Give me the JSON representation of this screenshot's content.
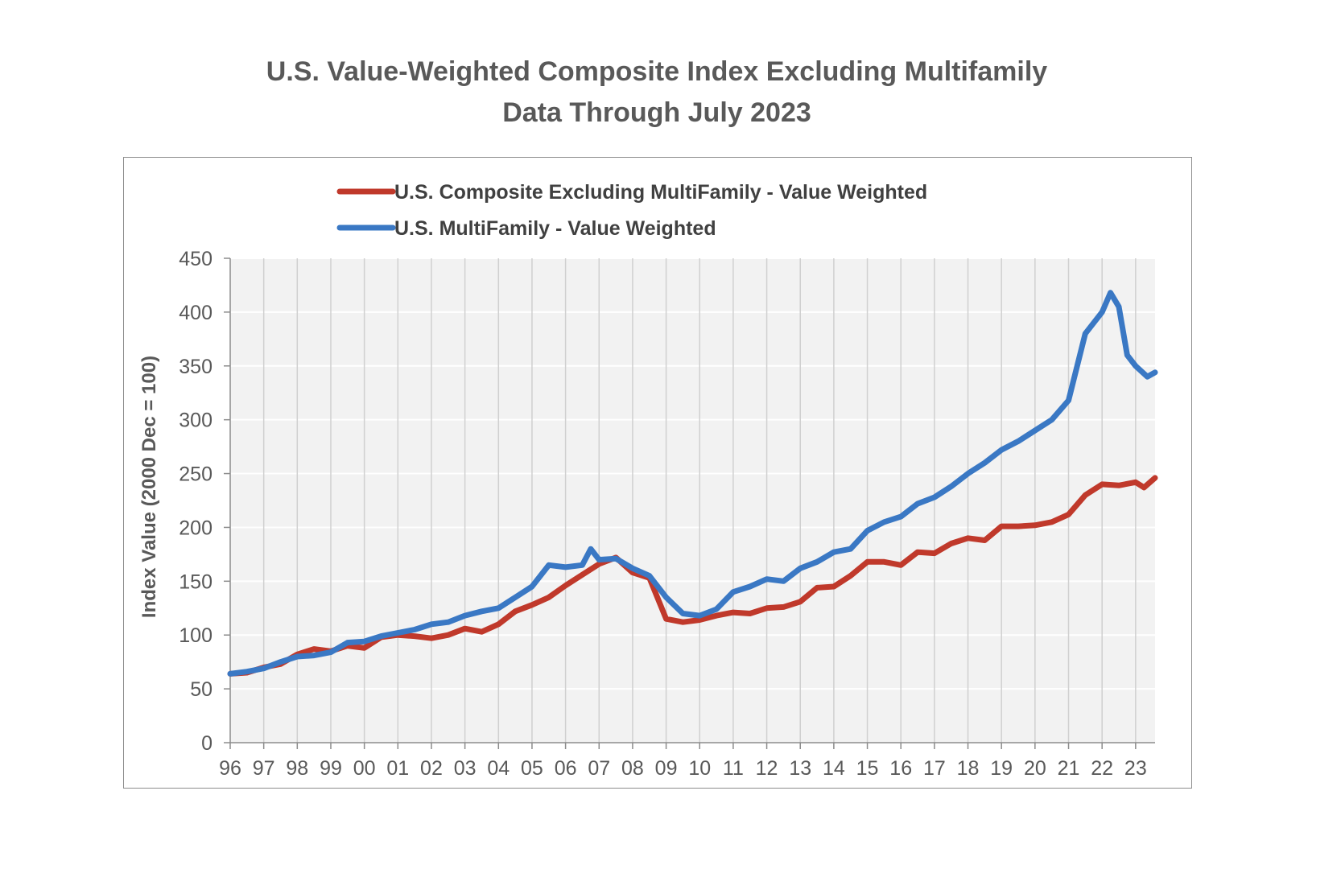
{
  "chart_data": {
    "type": "line",
    "title": "U.S. Value-Weighted Composite Index Excluding Multifamily",
    "subtitle": "Data Through July 2023",
    "xlabel": "",
    "ylabel": "Index Value (2000 Dec = 100)",
    "ylim": [
      0,
      450
    ],
    "xlim": [
      1996,
      2023.58
    ],
    "yticks": [
      "0",
      "50",
      "100",
      "150",
      "200",
      "250",
      "300",
      "350",
      "400",
      "450"
    ],
    "xticks": [
      "96",
      "97",
      "98",
      "99",
      "00",
      "01",
      "02",
      "03",
      "04",
      "05",
      "06",
      "07",
      "08",
      "09",
      "10",
      "11",
      "12",
      "13",
      "14",
      "15",
      "16",
      "17",
      "18",
      "19",
      "20",
      "21",
      "22",
      "23"
    ],
    "grid": true,
    "legend_position": "top",
    "series": [
      {
        "name": "U.S. Composite Excluding MultiFamily -  Value Weighted",
        "color": "#c0392b",
        "x": [
          1996.0,
          1996.5,
          1997.0,
          1997.5,
          1998.0,
          1998.5,
          1999.0,
          1999.5,
          2000.0,
          2000.5,
          2001.0,
          2001.5,
          2002.0,
          2002.5,
          2003.0,
          2003.5,
          2004.0,
          2004.5,
          2005.0,
          2005.5,
          2006.0,
          2006.5,
          2007.0,
          2007.5,
          2008.0,
          2008.5,
          2009.0,
          2009.5,
          2010.0,
          2010.5,
          2011.0,
          2011.5,
          2012.0,
          2012.5,
          2013.0,
          2013.5,
          2014.0,
          2014.5,
          2015.0,
          2015.5,
          2016.0,
          2016.5,
          2017.0,
          2017.5,
          2018.0,
          2018.5,
          2019.0,
          2019.5,
          2020.0,
          2020.5,
          2021.0,
          2021.5,
          2022.0,
          2022.5,
          2023.0,
          2023.25,
          2023.58
        ],
        "values": [
          64,
          65,
          70,
          73,
          82,
          87,
          85,
          90,
          88,
          98,
          100,
          99,
          97,
          100,
          106,
          103,
          110,
          122,
          128,
          135,
          146,
          156,
          166,
          172,
          158,
          153,
          115,
          112,
          114,
          118,
          121,
          120,
          125,
          126,
          131,
          144,
          145,
          155,
          168,
          168,
          165,
          177,
          176,
          185,
          190,
          188,
          201,
          201,
          202,
          205,
          212,
          230,
          240,
          239,
          242,
          237,
          246
        ]
      },
      {
        "name": "U.S. MultiFamily -  Value Weighted",
        "color": "#3a78c4",
        "x": [
          1996.0,
          1996.5,
          1997.0,
          1997.5,
          1998.0,
          1998.5,
          1999.0,
          1999.5,
          2000.0,
          2000.5,
          2001.0,
          2001.5,
          2002.0,
          2002.5,
          2003.0,
          2003.5,
          2004.0,
          2004.5,
          2005.0,
          2005.5,
          2006.0,
          2006.5,
          2006.75,
          2007.0,
          2007.5,
          2008.0,
          2008.5,
          2009.0,
          2009.5,
          2010.0,
          2010.5,
          2011.0,
          2011.5,
          2012.0,
          2012.5,
          2013.0,
          2013.5,
          2014.0,
          2014.5,
          2015.0,
          2015.5,
          2016.0,
          2016.5,
          2017.0,
          2017.5,
          2018.0,
          2018.5,
          2019.0,
          2019.5,
          2020.0,
          2020.5,
          2021.0,
          2021.5,
          2022.0,
          2022.25,
          2022.5,
          2022.75,
          2023.0,
          2023.35,
          2023.58
        ],
        "values": [
          64,
          66,
          69,
          75,
          80,
          81,
          84,
          93,
          94,
          99,
          102,
          105,
          110,
          112,
          118,
          122,
          125,
          135,
          145,
          165,
          163,
          165,
          180,
          170,
          171,
          162,
          155,
          135,
          120,
          118,
          124,
          140,
          145,
          152,
          150,
          162,
          168,
          177,
          180,
          197,
          205,
          210,
          222,
          228,
          238,
          250,
          260,
          272,
          280,
          290,
          300,
          318,
          380,
          400,
          418,
          405,
          360,
          350,
          340,
          344
        ]
      }
    ]
  }
}
